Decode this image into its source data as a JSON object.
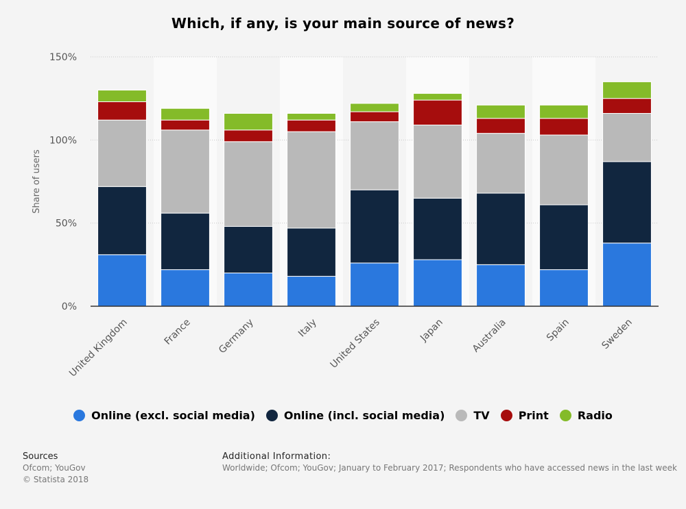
{
  "chart_data": {
    "type": "bar",
    "stacked": true,
    "title": "Which, if any, is your main source of news?",
    "ylabel": "Share of users",
    "ylim": [
      0,
      150
    ],
    "yticks": [
      0,
      50,
      100,
      150
    ],
    "ytick_labels": [
      "0%",
      "50%",
      "100%",
      "150%"
    ],
    "grid": true,
    "legend_position": "bottom",
    "categories": [
      "United Kingdom",
      "France",
      "Germany",
      "Italy",
      "United States",
      "Japan",
      "Australia",
      "Spain",
      "Sweden"
    ],
    "series": [
      {
        "name": "Online (excl. social media)",
        "color": "#2a78de",
        "values": [
          31,
          22,
          20,
          18,
          26,
          28,
          25,
          22,
          38
        ]
      },
      {
        "name": "Online (incl. social media)",
        "color": "#11263f",
        "values": [
          41,
          34,
          28,
          29,
          44,
          37,
          43,
          39,
          49
        ]
      },
      {
        "name": "TV",
        "color": "#b9b9b9",
        "values": [
          40,
          50,
          51,
          58,
          41,
          44,
          36,
          42,
          29
        ]
      },
      {
        "name": "Print",
        "color": "#a60d0d",
        "values": [
          11,
          6,
          7,
          7,
          6,
          15,
          9,
          10,
          9
        ]
      },
      {
        "name": "Radio",
        "color": "#84bb29",
        "values": [
          7,
          7,
          10,
          4,
          5,
          4,
          8,
          8,
          10
        ]
      }
    ]
  },
  "footer": {
    "sources_head": "Sources",
    "sources_line1": "Ofcom; YouGov",
    "sources_line2": "© Statista 2018",
    "addinfo_head": "Additional Information:",
    "addinfo_body": "Worldwide; Ofcom; YouGov; January to February 2017; Respondents who have accessed news in the last week"
  }
}
